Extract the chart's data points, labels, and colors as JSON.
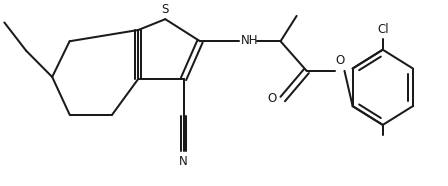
{
  "bg": "#ffffff",
  "lc": "#1a1a1a",
  "lw": 1.45,
  "fs": 8.5,
  "fw": 4.48,
  "fh": 1.86,
  "dpi": 100,
  "xlim": [
    -0.5,
    9.8
  ],
  "ylim": [
    0.2,
    4.1
  ],
  "S": [
    3.3,
    3.75
  ],
  "C2": [
    4.1,
    3.28
  ],
  "C3": [
    3.72,
    2.48
  ],
  "C3a": [
    2.68,
    2.48
  ],
  "C7a": [
    2.68,
    3.52
  ],
  "C4": [
    2.08,
    1.72
  ],
  "C5": [
    1.1,
    1.72
  ],
  "C6": [
    0.7,
    2.52
  ],
  "C7": [
    1.1,
    3.28
  ],
  "Et1": [
    0.1,
    3.08
  ],
  "Et2": [
    -0.4,
    3.68
  ],
  "CNc": [
    3.72,
    1.68
  ],
  "CNn": [
    3.72,
    0.95
  ],
  "NHx": 5.0,
  "NHy": 3.28,
  "CHx": 5.95,
  "CHy": 3.28,
  "CMex": 6.32,
  "CMey": 3.82,
  "COx": 6.55,
  "COy": 2.65,
  "Ocox": 6.0,
  "Ocoy": 2.05,
  "Ophx": 7.2,
  "Ophy": 2.65,
  "bcx": 8.3,
  "bcy": 2.3,
  "br": 0.8
}
